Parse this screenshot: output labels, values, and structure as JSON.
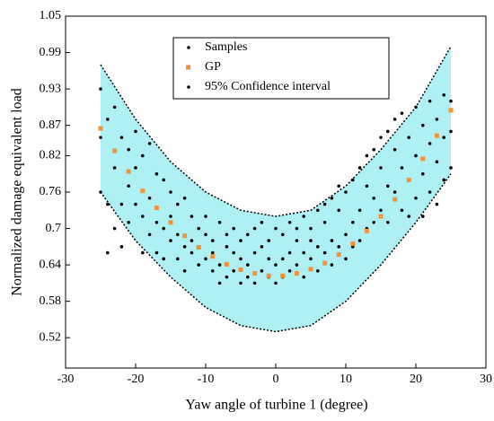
{
  "chart_data": {
    "type": "scatter",
    "xlabel": "Yaw angle of turbine 1 (degree)",
    "ylabel": "Normalized damage equivalent load",
    "xlim": [
      -30,
      30
    ],
    "xticks": [
      -30,
      -20,
      -10,
      0,
      10,
      20,
      30
    ],
    "ylim": [
      0.47,
      1.05
    ],
    "yticks": [
      0.52,
      0.58,
      0.64,
      0.7,
      0.76,
      0.82,
      0.87,
      0.93,
      0.99,
      1.05
    ],
    "series": [
      {
        "name": "Samples",
        "color": "#000000",
        "x": [
          -25,
          -25,
          -25,
          -24,
          -24,
          -24,
          -23,
          -23,
          -23,
          -22,
          -22,
          -22,
          -21,
          -21,
          -21,
          -20,
          -20,
          -20,
          -19,
          -19,
          -19,
          -18,
          -18,
          -18,
          -17,
          -17,
          -17,
          -16,
          -16,
          -16,
          -15,
          -15,
          -15,
          -14,
          -14,
          -14,
          -13,
          -13,
          -13,
          -12,
          -12,
          -12,
          -11,
          -11,
          -11,
          -10,
          -10,
          -10,
          -9,
          -9,
          -9,
          -8,
          -8,
          -8,
          -7,
          -7,
          -7,
          -6,
          -6,
          -6,
          -5,
          -5,
          -5,
          -4,
          -4,
          -4,
          -3,
          -3,
          -3,
          -2,
          -2,
          -2,
          -1,
          -1,
          -1,
          0,
          0,
          0,
          1,
          1,
          1,
          2,
          2,
          2,
          3,
          3,
          3,
          4,
          4,
          4,
          5,
          5,
          5,
          6,
          6,
          6,
          7,
          7,
          7,
          8,
          8,
          8,
          9,
          9,
          9,
          10,
          10,
          10,
          11,
          11,
          11,
          12,
          12,
          12,
          13,
          13,
          13,
          14,
          14,
          14,
          15,
          15,
          15,
          16,
          16,
          16,
          17,
          17,
          17,
          18,
          18,
          18,
          19,
          19,
          19,
          20,
          20,
          20,
          21,
          21,
          21,
          22,
          22,
          22,
          23,
          23,
          23,
          24,
          24,
          24,
          25,
          25,
          25
        ],
        "values": [
          0.93,
          0.85,
          0.76,
          0.88,
          0.74,
          0.66,
          0.9,
          0.8,
          0.7,
          0.85,
          0.74,
          0.67,
          0.83,
          0.71,
          0.77,
          0.86,
          0.8,
          0.74,
          0.82,
          0.72,
          0.66,
          0.84,
          0.75,
          0.69,
          0.79,
          0.71,
          0.66,
          0.78,
          0.7,
          0.65,
          0.76,
          0.68,
          0.72,
          0.74,
          0.69,
          0.65,
          0.75,
          0.67,
          0.63,
          0.72,
          0.66,
          0.68,
          0.7,
          0.64,
          0.67,
          0.69,
          0.65,
          0.72,
          0.68,
          0.63,
          0.66,
          0.71,
          0.64,
          0.61,
          0.67,
          0.62,
          0.69,
          0.66,
          0.63,
          0.7,
          0.68,
          0.61,
          0.65,
          0.69,
          0.64,
          0.62,
          0.7,
          0.66,
          0.61,
          0.67,
          0.63,
          0.71,
          0.68,
          0.62,
          0.65,
          0.7,
          0.64,
          0.61,
          0.69,
          0.65,
          0.62,
          0.71,
          0.66,
          0.63,
          0.68,
          0.64,
          0.7,
          0.72,
          0.66,
          0.62,
          0.7,
          0.65,
          0.68,
          0.73,
          0.67,
          0.63,
          0.71,
          0.66,
          0.74,
          0.75,
          0.68,
          0.64,
          0.73,
          0.67,
          0.77,
          0.76,
          0.69,
          0.65,
          0.78,
          0.71,
          0.67,
          0.8,
          0.73,
          0.68,
          0.77,
          0.7,
          0.82,
          0.83,
          0.75,
          0.71,
          0.8,
          0.73,
          0.85,
          0.86,
          0.77,
          0.71,
          0.83,
          0.76,
          0.88,
          0.89,
          0.8,
          0.73,
          0.85,
          0.78,
          0.72,
          0.9,
          0.82,
          0.75,
          0.87,
          0.79,
          0.72,
          0.91,
          0.84,
          0.76,
          0.88,
          0.81,
          0.74,
          0.92,
          0.85,
          0.78,
          0.91,
          0.86,
          0.8
        ]
      },
      {
        "name": "GP",
        "color": "#f0923a",
        "x": [
          -25,
          -23,
          -21,
          -19,
          -17,
          -15,
          -13,
          -11,
          -9,
          -7,
          -5,
          -3,
          -1,
          1,
          3,
          5,
          7,
          9,
          11,
          13,
          15,
          17,
          19,
          21,
          23,
          25
        ],
        "values": [
          0.865,
          0.828,
          0.794,
          0.762,
          0.734,
          0.71,
          0.688,
          0.669,
          0.654,
          0.641,
          0.632,
          0.626,
          0.622,
          0.622,
          0.626,
          0.633,
          0.643,
          0.657,
          0.675,
          0.696,
          0.72,
          0.748,
          0.78,
          0.815,
          0.853,
          0.895
        ]
      },
      {
        "name": "95% Confidence interval",
        "color": "#000000",
        "fill": "#aff0f4",
        "x": [
          -25,
          -20,
          -15,
          -10,
          -5,
          0,
          5,
          10,
          15,
          20,
          25
        ],
        "upper": [
          0.97,
          0.88,
          0.81,
          0.76,
          0.73,
          0.72,
          0.73,
          0.77,
          0.83,
          0.9,
          1.0
        ],
        "lower": [
          0.76,
          0.68,
          0.62,
          0.57,
          0.54,
          0.53,
          0.54,
          0.58,
          0.64,
          0.71,
          0.79
        ]
      }
    ]
  }
}
